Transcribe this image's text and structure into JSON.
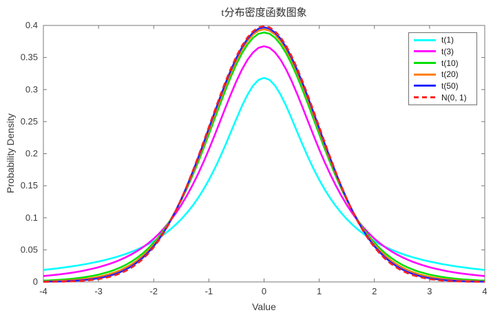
{
  "chart_data": {
    "type": "line",
    "title": "t分布密度函数图象",
    "xlabel": "Value",
    "ylabel": "Probability Density",
    "xlim": [
      -4,
      4
    ],
    "ylim": [
      0,
      0.4
    ],
    "grid": false,
    "legend_position": "top-right",
    "axis_color": "#777777",
    "text_color": "#3b3b3b",
    "xticks": {
      "values": [
        -4,
        -3,
        -2,
        -1,
        0,
        1,
        2,
        3,
        4
      ],
      "labels": [
        "-4",
        "-3",
        "-2",
        "-1",
        "0",
        "1",
        "2",
        "3",
        "4"
      ]
    },
    "yticks": {
      "values": [
        0,
        0.05,
        0.1,
        0.15,
        0.2,
        0.25,
        0.3,
        0.35,
        0.4
      ],
      "labels": [
        "0",
        "0.05",
        "0.1",
        "0.15",
        "0.2",
        "0.25",
        "0.3",
        "0.35",
        "0.4"
      ]
    },
    "symmetric": true,
    "x_abs": [
      0,
      0.1,
      0.2,
      0.3,
      0.4,
      0.5,
      0.6,
      0.7,
      0.8,
      0.9,
      1,
      1.1,
      1.2,
      1.3,
      1.4,
      1.5,
      1.6,
      1.7,
      1.8,
      1.9,
      2,
      2.1,
      2.2,
      2.3,
      2.4,
      2.5,
      2.6,
      2.7,
      2.8,
      2.9,
      3,
      3.1,
      3.2,
      3.3,
      3.4,
      3.5,
      3.6,
      3.7,
      3.8,
      3.9,
      4
    ],
    "series": [
      {
        "name": "t(1)",
        "df": 1,
        "color": "#00FFFF",
        "style": "solid",
        "y_abs": [
          0.3183,
          0.3152,
          0.3061,
          0.292,
          0.2744,
          0.2546,
          0.234,
          0.2136,
          0.1941,
          0.1759,
          0.1592,
          0.144,
          0.1304,
          0.1183,
          0.1075,
          0.0979,
          0.0894,
          0.0818,
          0.0751,
          0.069,
          0.0637,
          0.0588,
          0.0545,
          0.0506,
          0.0471,
          0.0439,
          0.041,
          0.0384,
          0.036,
          0.0338,
          0.0318,
          0.03,
          0.0283,
          0.0268,
          0.0253,
          0.024,
          0.0228,
          0.0217,
          0.0206,
          0.0196,
          0.0187
        ]
      },
      {
        "name": "t(3)",
        "df": 3,
        "color": "#FF00FF",
        "style": "solid",
        "y_abs": [
          0.3676,
          0.3651,
          0.3579,
          0.3465,
          0.3313,
          0.3132,
          0.293,
          0.2716,
          0.2497,
          0.2279,
          0.2067,
          0.1866,
          0.1678,
          0.1504,
          0.1345,
          0.12,
          0.107,
          0.0954,
          0.085,
          0.0757,
          0.0675,
          0.0602,
          0.0538,
          0.0481,
          0.0431,
          0.0387,
          0.0347,
          0.0312,
          0.0282,
          0.0254,
          0.023,
          0.0208,
          0.0189,
          0.0171,
          0.0156,
          0.0142,
          0.013,
          0.0119,
          0.0109,
          0.01,
          0.0092
        ]
      },
      {
        "name": "t(10)",
        "df": 10,
        "color": "#00DF00",
        "style": "solid",
        "y_abs": [
          0.3891,
          0.387,
          0.3807,
          0.3704,
          0.3566,
          0.3397,
          0.3203,
          0.2991,
          0.2767,
          0.2536,
          0.2304,
          0.2077,
          0.1856,
          0.1649,
          0.1454,
          0.1274,
          0.1111,
          0.0963,
          0.0831,
          0.0714,
          0.0611,
          0.0522,
          0.0444,
          0.0377,
          0.0319,
          0.0269,
          0.0227,
          0.0192,
          0.0161,
          0.0136,
          0.0114,
          0.0096,
          0.0081,
          0.0068,
          0.0057,
          0.0048,
          0.004,
          0.0034,
          0.0029,
          0.0024,
          0.002
        ]
      },
      {
        "name": "t(20)",
        "df": 20,
        "color": "#FF8000",
        "style": "solid",
        "y_abs": [
          0.394,
          0.3919,
          0.3858,
          0.3758,
          0.3624,
          0.3458,
          0.3267,
          0.3056,
          0.283,
          0.2597,
          0.236,
          0.2126,
          0.1899,
          0.1681,
          0.1476,
          0.1286,
          0.1112,
          0.0955,
          0.0814,
          0.069,
          0.0581,
          0.0486,
          0.0405,
          0.0335,
          0.0276,
          0.0227,
          0.0185,
          0.0151,
          0.0122,
          0.0099,
          0.008,
          0.0064,
          0.0051,
          0.0041,
          0.0033,
          0.0026,
          0.0021,
          0.0017,
          0.0013,
          0.001,
          0.0008
        ]
      },
      {
        "name": "t(50)",
        "df": 50,
        "color": "#2222FF",
        "style": "solid",
        "y_abs": [
          0.397,
          0.3949,
          0.3889,
          0.3792,
          0.3659,
          0.3495,
          0.3306,
          0.3096,
          0.287,
          0.2635,
          0.2396,
          0.2157,
          0.1924,
          0.1701,
          0.1489,
          0.1292,
          0.1111,
          0.0947,
          0.0801,
          0.0671,
          0.0558,
          0.046,
          0.0376,
          0.0306,
          0.0246,
          0.0197,
          0.0156,
          0.0123,
          0.0097,
          0.0075,
          0.0058,
          0.0045,
          0.0034,
          0.0026,
          0.002,
          0.0015,
          0.0011,
          0.0008,
          0.0006,
          0.0005,
          0.0003
        ]
      },
      {
        "name": "N(0, 1)",
        "color": "#FF2222",
        "style": "dashed",
        "y_abs": [
          0.3989,
          0.397,
          0.391,
          0.3814,
          0.3683,
          0.3521,
          0.3332,
          0.3123,
          0.2897,
          0.2661,
          0.242,
          0.2179,
          0.1942,
          0.1714,
          0.1497,
          0.1295,
          0.1109,
          0.094,
          0.079,
          0.0656,
          0.054,
          0.044,
          0.0355,
          0.0283,
          0.0224,
          0.0175,
          0.0136,
          0.0104,
          0.0079,
          0.006,
          0.0044,
          0.0033,
          0.0024,
          0.0017,
          0.0012,
          0.0009,
          0.0006,
          0.0004,
          0.0003,
          0.0002,
          0.0001
        ]
      }
    ]
  }
}
